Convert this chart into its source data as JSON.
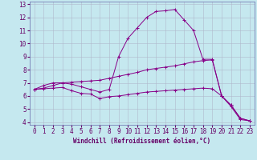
{
  "xlabel": "Windchill (Refroidissement éolien,°C)",
  "bg_color": "#c5e8ef",
  "line_color": "#880088",
  "grid_color": "#b0b8cc",
  "xlim": [
    -0.5,
    23.5
  ],
  "ylim": [
    3.8,
    13.2
  ],
  "xticks": [
    0,
    1,
    2,
    3,
    4,
    5,
    6,
    7,
    8,
    9,
    10,
    11,
    12,
    13,
    14,
    15,
    16,
    17,
    18,
    19,
    20,
    21,
    22,
    23
  ],
  "yticks": [
    4,
    5,
    6,
    7,
    8,
    9,
    10,
    11,
    12,
    13
  ],
  "curve1_x": [
    0,
    1,
    2,
    3,
    4,
    5,
    6,
    7,
    8,
    9,
    10,
    11,
    12,
    13,
    14,
    15,
    16,
    17,
    18,
    19,
    20,
    21,
    22,
    23
  ],
  "curve1_y": [
    6.5,
    6.8,
    7.0,
    7.0,
    6.9,
    6.7,
    6.5,
    6.3,
    6.5,
    9.0,
    10.4,
    11.2,
    12.0,
    12.45,
    12.5,
    12.6,
    11.8,
    11.0,
    8.8,
    8.8,
    6.0,
    5.2,
    4.2,
    4.1
  ],
  "curve2_x": [
    0,
    1,
    2,
    3,
    4,
    5,
    6,
    7,
    8,
    9,
    10,
    11,
    12,
    13,
    14,
    15,
    16,
    17,
    18,
    19,
    20,
    21,
    22,
    23
  ],
  "curve2_y": [
    6.5,
    6.6,
    6.8,
    7.0,
    7.05,
    7.1,
    7.15,
    7.2,
    7.35,
    7.5,
    7.65,
    7.8,
    8.0,
    8.1,
    8.2,
    8.3,
    8.45,
    8.6,
    8.7,
    8.75,
    6.0,
    5.3,
    4.3,
    4.1
  ],
  "curve3_x": [
    0,
    1,
    2,
    3,
    4,
    5,
    6,
    7,
    8,
    9,
    10,
    11,
    12,
    13,
    14,
    15,
    16,
    17,
    18,
    19,
    20,
    21,
    22,
    23
  ],
  "curve3_y": [
    6.5,
    6.55,
    6.6,
    6.65,
    6.4,
    6.2,
    6.15,
    5.8,
    5.95,
    6.0,
    6.1,
    6.2,
    6.3,
    6.35,
    6.4,
    6.45,
    6.5,
    6.55,
    6.6,
    6.55,
    6.0,
    5.3,
    4.3,
    4.1
  ],
  "xlabel_fontsize": 5.5,
  "tick_fontsize": 5.5
}
